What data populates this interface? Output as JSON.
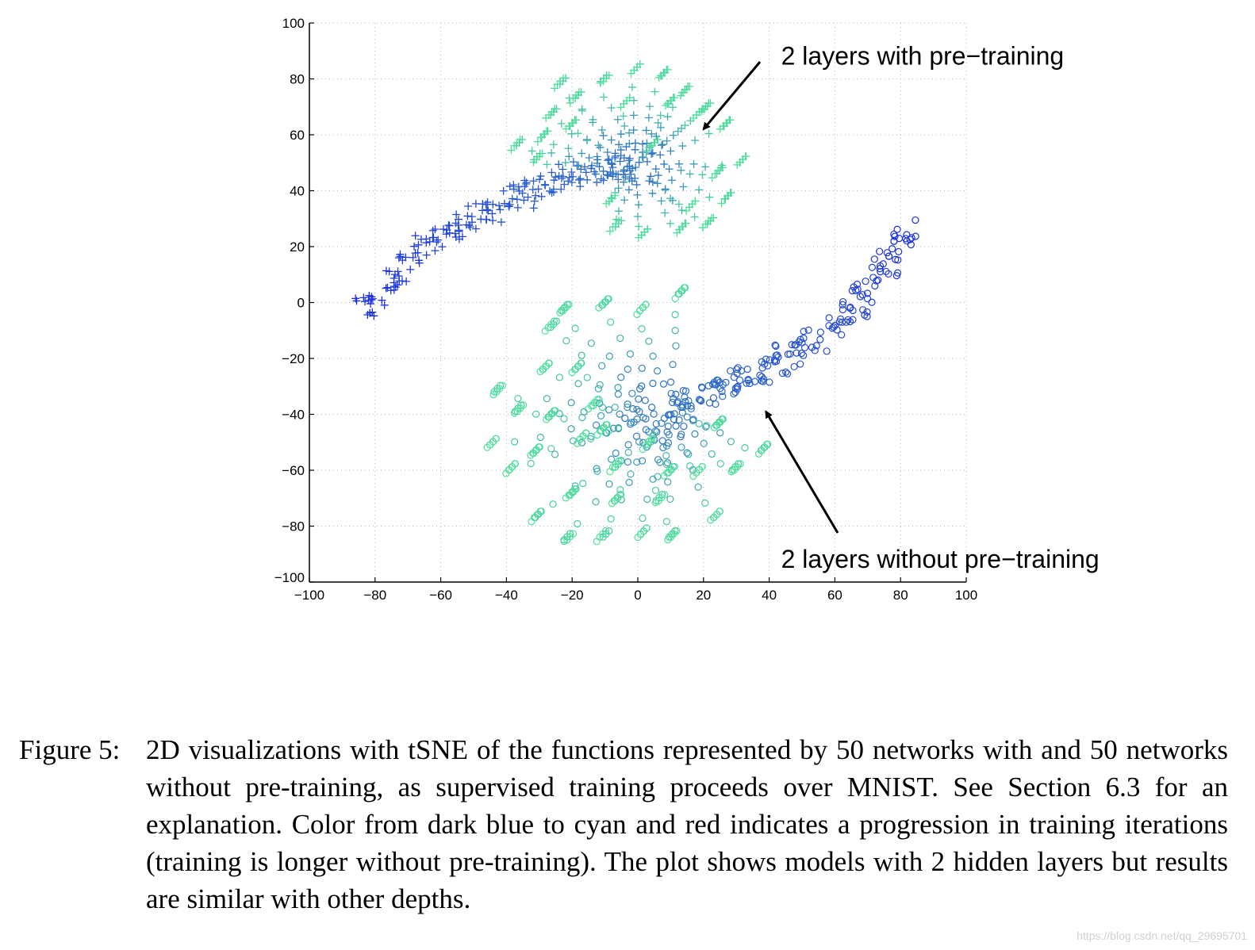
{
  "chart_data": {
    "type": "scatter",
    "title": "",
    "xlabel": "",
    "ylabel": "",
    "xlim": [
      -100,
      100
    ],
    "ylim": [
      -100,
      100
    ],
    "xticks": [
      -100,
      -80,
      -60,
      -40,
      -20,
      0,
      20,
      40,
      60,
      80,
      100
    ],
    "yticks": [
      -100,
      -80,
      -60,
      -40,
      -20,
      0,
      20,
      40,
      60,
      80,
      100
    ],
    "xtick_labels": [
      "−100",
      "−80",
      "−60",
      "−40",
      "−20",
      "0",
      "20",
      "40",
      "60",
      "80",
      "100"
    ],
    "ytick_labels": [
      "−100",
      "−80",
      "−60",
      "−40",
      "−20",
      "0",
      "20",
      "40",
      "60",
      "80",
      "100"
    ],
    "grid": true,
    "colormap": [
      "#1a2fe0",
      "#4fe09a"
    ],
    "series": [
      {
        "name": "2 layers with pre-training",
        "marker": "+",
        "trunk": [
          [
            -83,
            -2,
            0.0
          ],
          [
            -80,
            2,
            0.02
          ],
          [
            -76,
            8,
            0.04
          ],
          [
            -72,
            12,
            0.05
          ],
          [
            -68,
            16,
            0.07
          ],
          [
            -64,
            20,
            0.08
          ],
          [
            -60,
            23,
            0.1
          ],
          [
            -56,
            26,
            0.12
          ],
          [
            -52,
            28,
            0.14
          ],
          [
            -48,
            31,
            0.16
          ],
          [
            -44,
            33,
            0.18
          ],
          [
            -40,
            36,
            0.2
          ],
          [
            -36,
            38,
            0.22
          ],
          [
            -32,
            40,
            0.24
          ],
          [
            -28,
            42,
            0.25
          ],
          [
            -24,
            44,
            0.27
          ],
          [
            -20,
            45,
            0.29
          ],
          [
            -16,
            46,
            0.31
          ],
          [
            -12,
            47,
            0.33
          ],
          [
            -8,
            48,
            0.35
          ],
          [
            -4,
            48,
            0.37
          ],
          [
            0,
            49,
            0.38
          ]
        ],
        "endpoints": [
          [
            -25,
            77
          ],
          [
            -12,
            78
          ],
          [
            -2,
            82
          ],
          [
            6,
            80
          ],
          [
            13,
            74
          ],
          [
            19,
            68
          ],
          [
            25,
            62
          ],
          [
            30,
            49
          ],
          [
            26,
            36
          ],
          [
            20,
            27
          ],
          [
            12,
            25
          ],
          [
            0,
            23
          ],
          [
            -8,
            26
          ],
          [
            -28,
            66
          ],
          [
            -38,
            55
          ],
          [
            -30,
            58
          ],
          [
            -20,
            72
          ],
          [
            -5,
            70
          ],
          [
            8,
            70
          ],
          [
            17,
            66
          ],
          [
            23,
            45
          ],
          [
            15,
            33
          ],
          [
            -10,
            35
          ],
          [
            -32,
            50
          ],
          [
            -22,
            62
          ],
          [
            3,
            55
          ]
        ],
        "streak_points": 6
      },
      {
        "name": "2 layers without pre-training",
        "marker": "o",
        "trunk": [
          [
            81,
            25,
            0.0
          ],
          [
            78,
            20,
            0.02
          ],
          [
            75,
            14,
            0.04
          ],
          [
            72,
            9,
            0.06
          ],
          [
            69,
            4,
            0.08
          ],
          [
            66,
            -1,
            0.1
          ],
          [
            62,
            -5,
            0.12
          ],
          [
            58,
            -9,
            0.14
          ],
          [
            54,
            -13,
            0.16
          ],
          [
            50,
            -16,
            0.18
          ],
          [
            46,
            -19,
            0.2
          ],
          [
            42,
            -22,
            0.22
          ],
          [
            38,
            -24,
            0.24
          ],
          [
            34,
            -26,
            0.26
          ],
          [
            30,
            -28,
            0.28
          ],
          [
            26,
            -30,
            0.3
          ],
          [
            22,
            -32,
            0.32
          ],
          [
            18,
            -34,
            0.34
          ],
          [
            14,
            -36,
            0.36
          ],
          [
            10,
            -38,
            0.38
          ]
        ],
        "endpoints": [
          [
            -46,
            -52
          ],
          [
            -40,
            -61
          ],
          [
            -32,
            -78
          ],
          [
            -23,
            -86
          ],
          [
            -12,
            -85
          ],
          [
            0,
            -84
          ],
          [
            9,
            -85
          ],
          [
            22,
            -78
          ],
          [
            28,
            -61
          ],
          [
            37,
            -54
          ],
          [
            -44,
            -33
          ],
          [
            -38,
            -40
          ],
          [
            -30,
            -25
          ],
          [
            -28,
            -10
          ],
          [
            -24,
            -4
          ],
          [
            -12,
            -2
          ],
          [
            0,
            -4
          ],
          [
            12,
            2
          ],
          [
            -33,
            -55
          ],
          [
            -22,
            -70
          ],
          [
            -8,
            -72
          ],
          [
            5,
            -72
          ],
          [
            17,
            -62
          ],
          [
            -18,
            -50
          ],
          [
            -8,
            -60
          ],
          [
            2,
            -52
          ],
          [
            -28,
            -42
          ],
          [
            -15,
            -38
          ],
          [
            8,
            -62
          ],
          [
            23,
            -45
          ],
          [
            -20,
            -25
          ],
          [
            -12,
            -47
          ]
        ],
        "streak_points": 6
      }
    ],
    "annotations": [
      {
        "text": "2 layers with pre−training",
        "anchor": [
          20,
          62
        ],
        "label_at": [
          40,
          88
        ]
      },
      {
        "text": "2 layers without pre−training",
        "anchor": [
          39,
          -39
        ],
        "label_at": [
          40,
          -92
        ]
      }
    ]
  },
  "caption": {
    "label": "Figure 5:",
    "text": "2D visualizations with tSNE of the functions represented by 50 networks with and 50 networks without pre-training, as supervised training proceeds over MNIST. See Section 6.3 for an explanation. Color from dark blue to cyan and red indicates a progression in training iterations (training is longer without pre-training). The plot shows models with 2 hidden layers but results are similar with other depths."
  },
  "watermark": "https://blog.csdn.net/qq_29695701"
}
